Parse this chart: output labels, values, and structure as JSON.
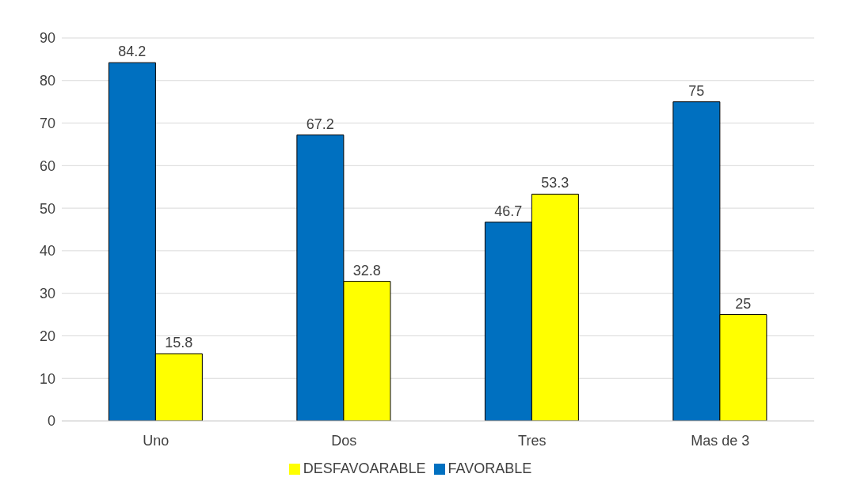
{
  "chart_data": {
    "type": "bar",
    "categories": [
      "Uno",
      "Dos",
      "Tres",
      "Mas de 3"
    ],
    "series": [
      {
        "name": "FAVORABLE",
        "color": "#0070c0",
        "values": [
          84.2,
          67.2,
          46.7,
          75
        ]
      },
      {
        "name": "DESFAVOARABLE",
        "color": "#ffff00",
        "values": [
          15.8,
          32.8,
          53.3,
          25
        ]
      }
    ],
    "ylim": [
      0,
      90
    ],
    "yticks": [
      0,
      10,
      20,
      30,
      40,
      50,
      60,
      70,
      80,
      90
    ],
    "grid": "y",
    "legend": "bottom",
    "data_labels": true
  }
}
